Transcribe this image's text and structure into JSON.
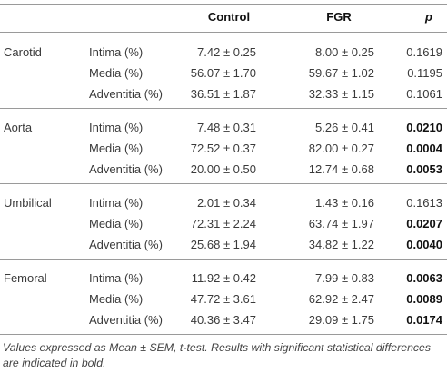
{
  "header": {
    "control": "Control",
    "fgr": "FGR",
    "p": "p"
  },
  "groups": [
    {
      "name": "Carotid",
      "rows": [
        {
          "layer": "Intima (%)",
          "control": "7.42 ± 0.25",
          "fgr": "8.00 ± 0.25",
          "p": "0.1619",
          "p_bold": false
        },
        {
          "layer": "Media (%)",
          "control": "56.07 ± 1.70",
          "fgr": "59.67 ± 1.02",
          "p": "0.1195",
          "p_bold": false
        },
        {
          "layer": "Adventitia (%)",
          "control": "36.51 ± 1.87",
          "fgr": "32.33 ± 1.15",
          "p": "0.1061",
          "p_bold": false
        }
      ]
    },
    {
      "name": "Aorta",
      "rows": [
        {
          "layer": "Intima (%)",
          "control": "7.48 ± 0.31",
          "fgr": "5.26 ± 0.41",
          "p": "0.0210",
          "p_bold": true
        },
        {
          "layer": "Media (%)",
          "control": "72.52 ± 0.37",
          "fgr": "82.00 ± 0.27",
          "p": "0.0004",
          "p_bold": true
        },
        {
          "layer": "Adventitia (%)",
          "control": "20.00 ± 0.50",
          "fgr": "12.74 ± 0.68",
          "p": "0.0053",
          "p_bold": true
        }
      ]
    },
    {
      "name": "Umbilical",
      "rows": [
        {
          "layer": "Intima (%)",
          "control": "2.01 ± 0.34",
          "fgr": "1.43 ± 0.16",
          "p": "0.1613",
          "p_bold": false
        },
        {
          "layer": "Media (%)",
          "control": "72.31 ± 2.24",
          "fgr": "63.74 ± 1.97",
          "p": "0.0207",
          "p_bold": true
        },
        {
          "layer": "Adventitia (%)",
          "control": "25.68 ± 1.94",
          "fgr": "34.82 ± 1.22",
          "p": "0.0040",
          "p_bold": true
        }
      ]
    },
    {
      "name": "Femoral",
      "rows": [
        {
          "layer": "Intima (%)",
          "control": "11.92 ± 0.42",
          "fgr": "7.99 ± 0.83",
          "p": "0.0063",
          "p_bold": true
        },
        {
          "layer": "Media (%)",
          "control": "47.72 ± 3.61",
          "fgr": "62.92 ± 2.47",
          "p": "0.0089",
          "p_bold": true
        },
        {
          "layer": "Adventitia (%)",
          "control": "40.36 ± 3.47",
          "fgr": "29.09 ± 1.75",
          "p": "0.0174",
          "p_bold": true
        }
      ]
    }
  ],
  "footnote": "Values expressed as Mean ± SEM, t-test. Results with significant statistical differences are indicated in bold."
}
